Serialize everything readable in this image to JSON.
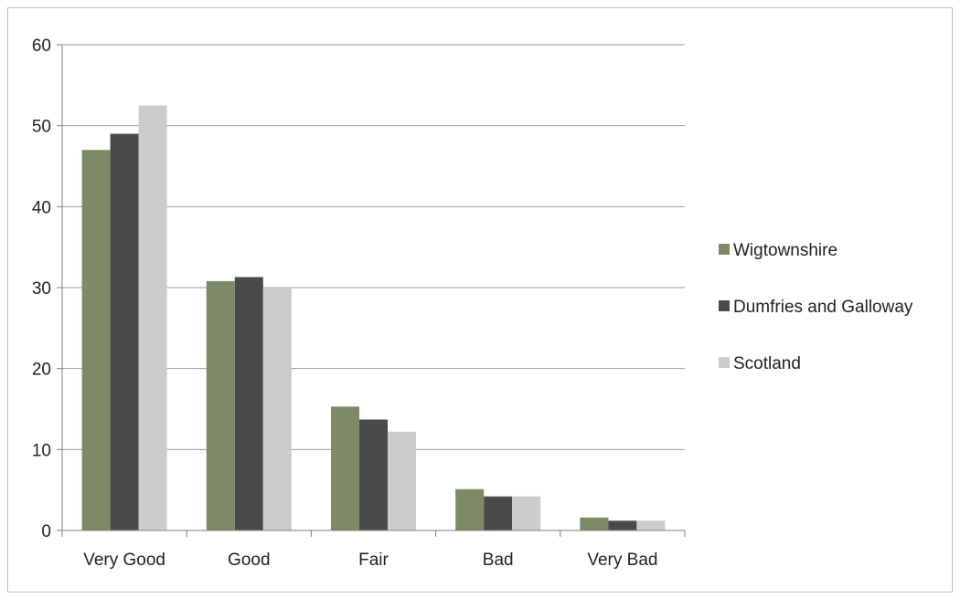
{
  "chart_data": {
    "type": "bar",
    "categories": [
      "Very Good",
      "Good",
      "Fair",
      "Bad",
      "Very Bad"
    ],
    "series": [
      {
        "name": "Wigtownshire",
        "values": [
          47,
          30.8,
          15.3,
          5.1,
          1.6
        ],
        "color": "#7d8a65"
      },
      {
        "name": "Dumfries and Galloway",
        "values": [
          49,
          31.3,
          13.7,
          4.2,
          1.2
        ],
        "color": "#4a4a4a"
      },
      {
        "name": "Scotland",
        "values": [
          52.5,
          30,
          12.2,
          4.2,
          1.2
        ],
        "color": "#cccccc"
      }
    ],
    "yticks": [
      "0",
      "10",
      "20",
      "30",
      "40",
      "50",
      "60"
    ],
    "ylim": [
      0,
      60
    ],
    "grid": true,
    "legend": "right",
    "title": "",
    "xlabel": "",
    "ylabel": ""
  }
}
